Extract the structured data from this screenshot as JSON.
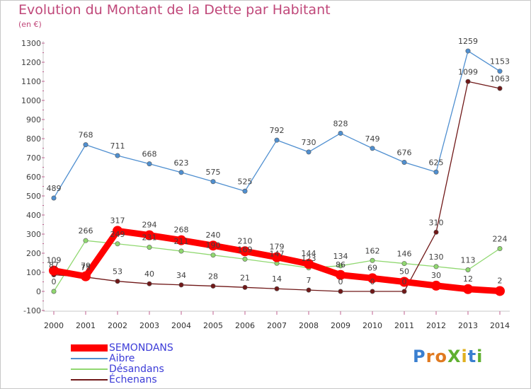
{
  "title": "Evolution du Montant de la Dette par Habitant",
  "subtitle": "(en €)",
  "logo": "ProXiti",
  "chart_data": {
    "type": "line",
    "x": [
      "2000",
      "2001",
      "2002",
      "2003",
      "2004",
      "2005",
      "2006",
      "2007",
      "2008",
      "2009",
      "2010",
      "2011",
      "2012",
      "2013",
      "2014"
    ],
    "ylim": [
      -100,
      1300
    ],
    "yticks": [
      -100,
      0,
      100,
      200,
      300,
      400,
      500,
      600,
      700,
      800,
      900,
      1000,
      1100,
      1200,
      1300
    ],
    "grid": false,
    "legend_position": "bottom-left",
    "series": [
      {
        "name": "SEMONDANS",
        "color": "#ff0000",
        "values": [
          109,
          79,
          317,
          294,
          268,
          240,
          210,
          179,
          144,
          86,
          69,
          50,
          30,
          12,
          2
        ]
      },
      {
        "name": "Aibre",
        "color": "#4f8fd0",
        "values": [
          489,
          768,
          711,
          668,
          623,
          575,
          525,
          792,
          730,
          828,
          749,
          676,
          625,
          1259,
          1153
        ]
      },
      {
        "name": "Désandans",
        "color": "#90d870",
        "values": [
          0,
          266,
          249,
          231,
          211,
          190,
          169,
          147,
          123,
          134,
          162,
          146,
          130,
          113,
          224
        ]
      },
      {
        "name": "Échenans",
        "color": "#701818",
        "values": [
          87,
          75,
          53,
          40,
          34,
          28,
          21,
          14,
          7,
          0,
          0,
          0,
          310,
          1099,
          1063
        ]
      }
    ]
  }
}
